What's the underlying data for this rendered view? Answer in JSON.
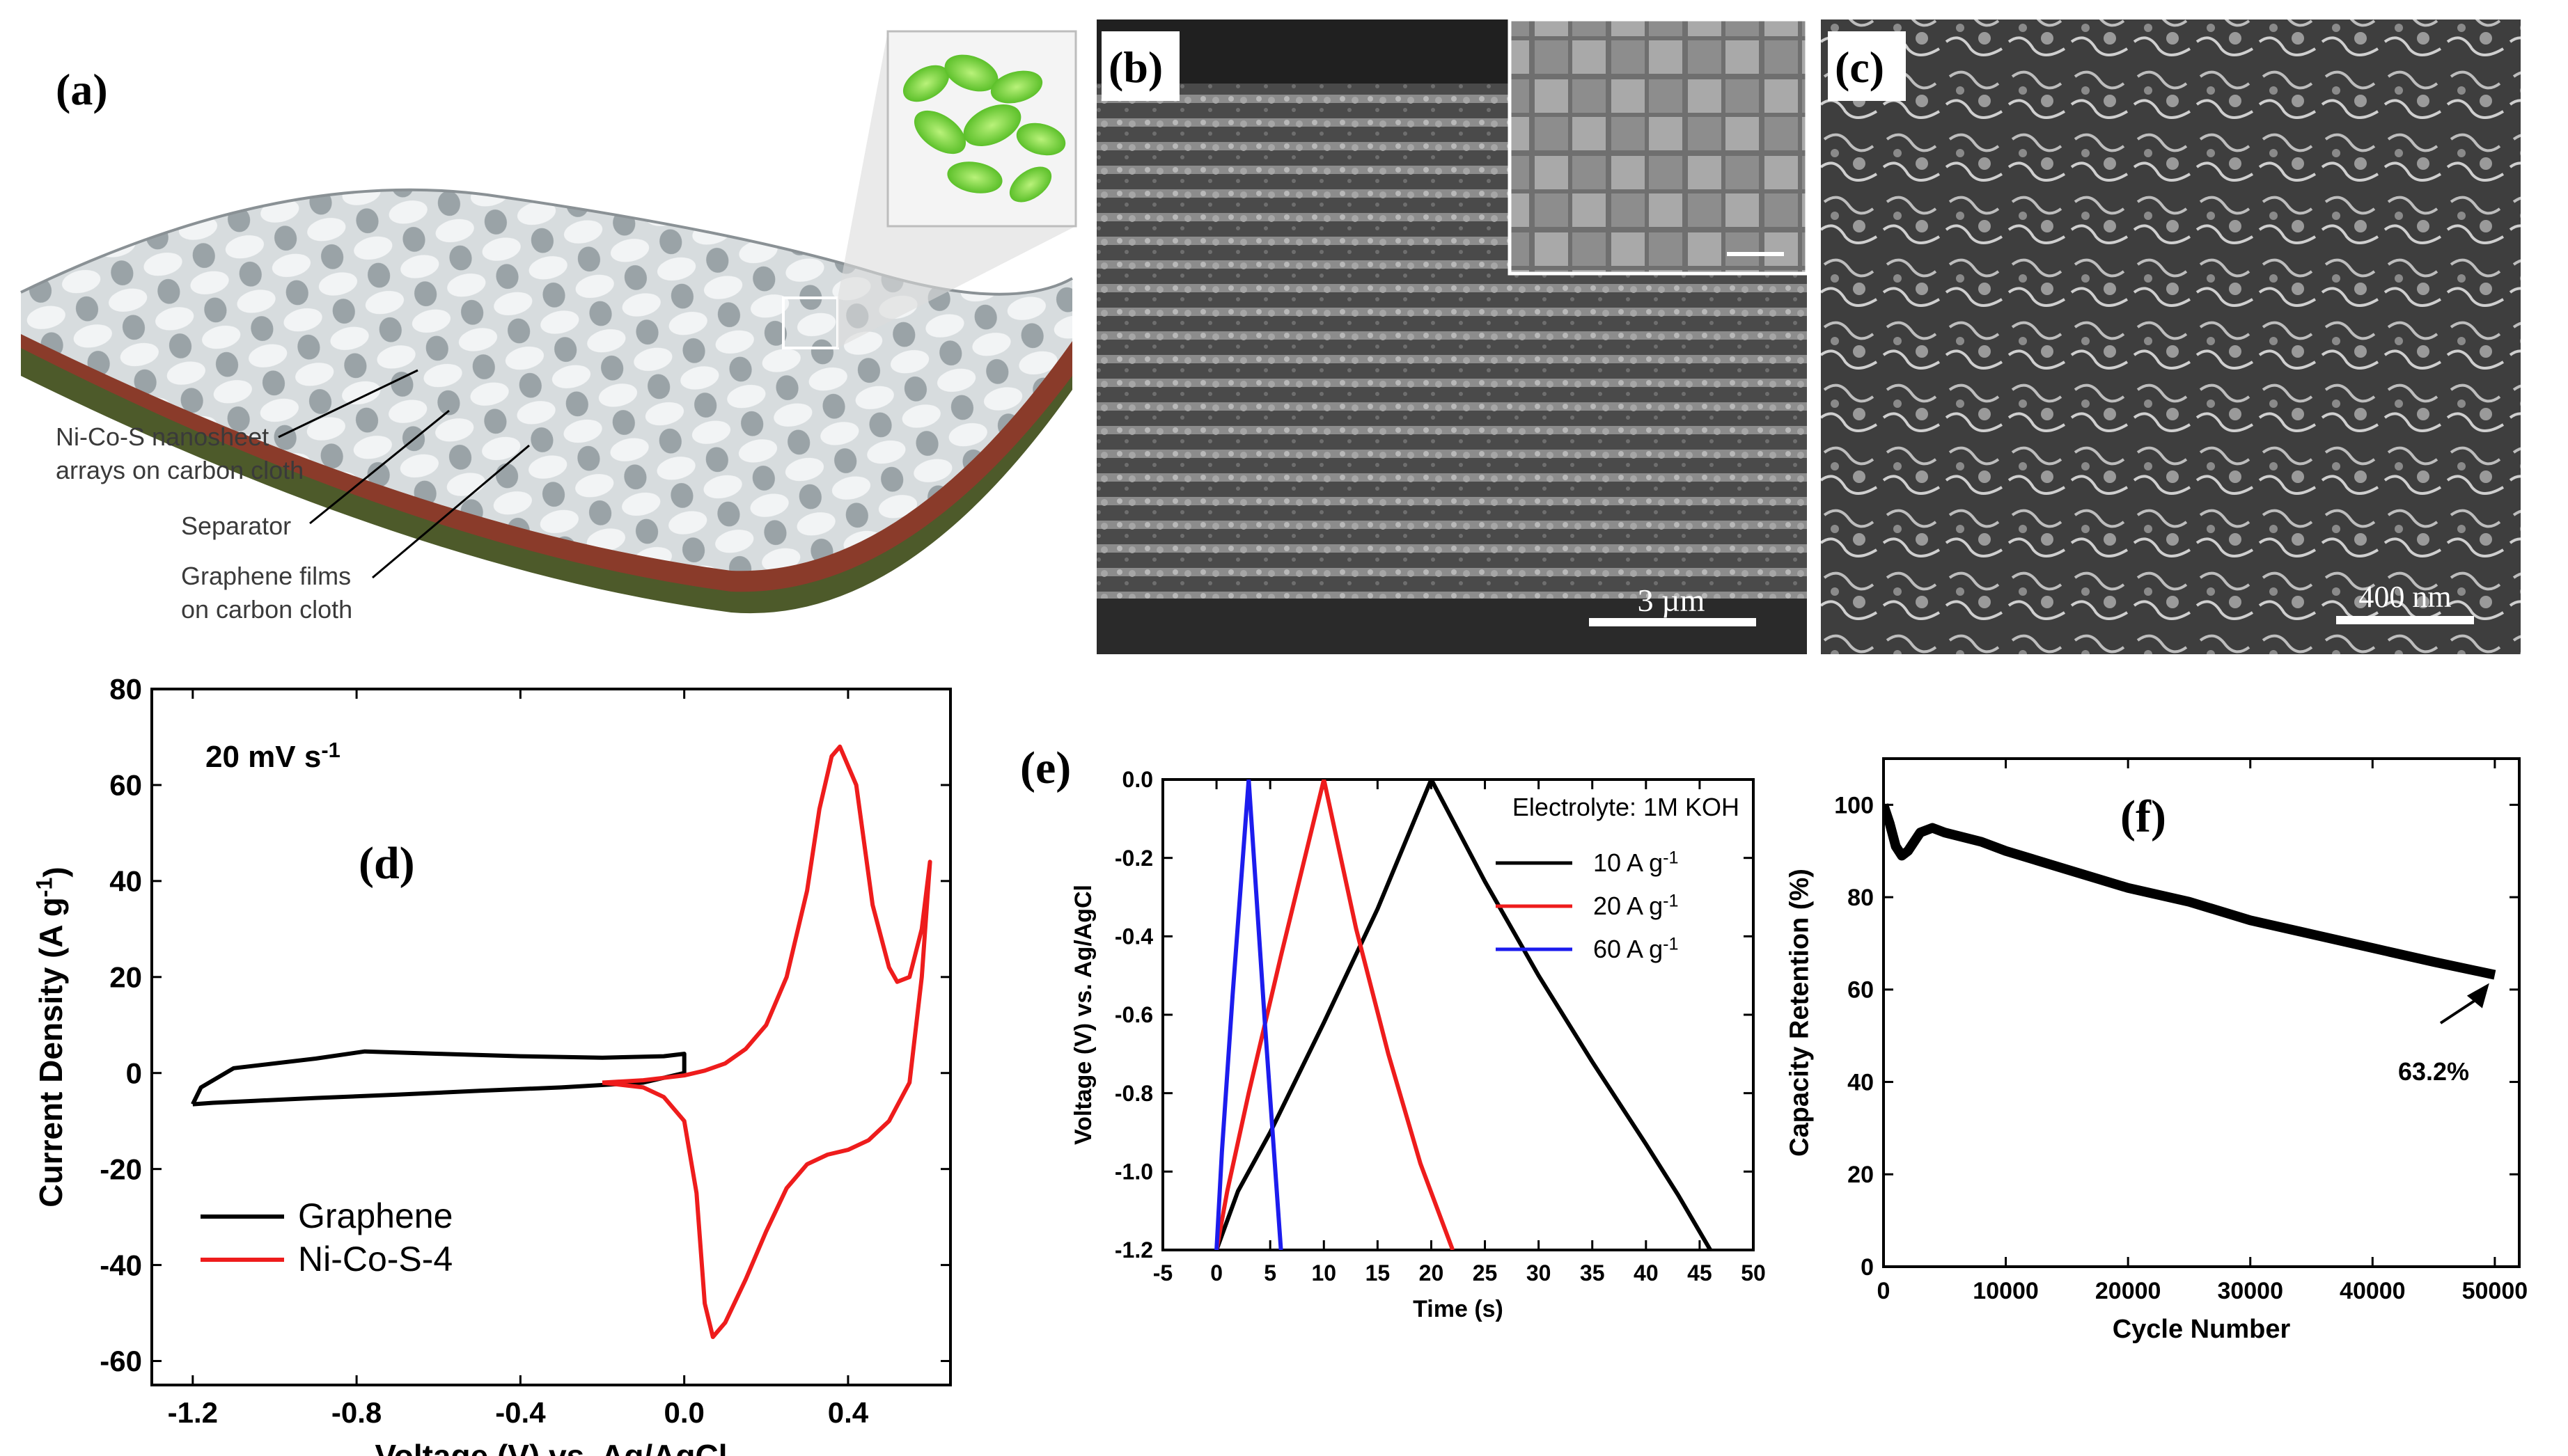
{
  "panels": {
    "a": {
      "letter": "(a)",
      "labels": {
        "nanosheet_line1": "Ni-Co-S nanosheet",
        "nanosheet_line2": "arrays on carbon cloth",
        "separator": "Separator",
        "graphene_line1": "Graphene films",
        "graphene_line2": "on carbon cloth"
      },
      "colors": {
        "cloth": "#c9cfd2",
        "separator": "#8a3b2a",
        "graphene": "#4d5a2a",
        "nanosheet": "#7fdc3a"
      }
    },
    "b": {
      "letter": "(b)",
      "scale_bar": "3 µm"
    },
    "c": {
      "letter": "(c)",
      "scale_bar": "400 nm"
    }
  },
  "chart_data": [
    {
      "panel": "d",
      "letter": "(d)",
      "type": "line",
      "annotation": "20 mV s",
      "annotation_sup": "-1",
      "xlabel": "Voltage (V) vs. Ag/AgCl",
      "ylabel": "Current Density (A g",
      "ylabel_sup": "-1",
      "ylabel_tail": ")",
      "xlim": [
        -1.3,
        0.65
      ],
      "ylim": [
        -65,
        80
      ],
      "x_ticks": [
        -1.2,
        -0.8,
        -0.4,
        0.0,
        0.4
      ],
      "x_tick_labels": [
        "-1.2",
        "-0.8",
        "-0.4",
        "0.0",
        "0.4"
      ],
      "y_ticks": [
        -60,
        -40,
        -20,
        0,
        20,
        40,
        60,
        80
      ],
      "y_tick_labels": [
        "-60",
        "-40",
        "-20",
        "0",
        "20",
        "40",
        "60",
        "80"
      ],
      "legend_position": "bottom-left",
      "series": [
        {
          "name": "Graphene",
          "color": "#000000",
          "x": [
            -1.2,
            -1.18,
            -1.1,
            -0.9,
            -0.78,
            -0.6,
            -0.4,
            -0.2,
            -0.05,
            0.0,
            0.0,
            -0.1,
            -0.3,
            -0.5,
            -0.7,
            -0.9,
            -1.05,
            -1.15,
            -1.2,
            -1.2
          ],
          "y": [
            -6.5,
            -3,
            1,
            3,
            4.5,
            4,
            3.5,
            3.2,
            3.5,
            4,
            0,
            -2,
            -3,
            -3.7,
            -4.5,
            -5.2,
            -5.8,
            -6.2,
            -6.5,
            -6.5
          ]
        },
        {
          "name": "Ni-Co-S-4",
          "color": "#ee1c1c",
          "x": [
            -0.2,
            -0.1,
            0.0,
            0.05,
            0.1,
            0.15,
            0.2,
            0.25,
            0.3,
            0.33,
            0.36,
            0.38,
            0.42,
            0.46,
            0.5,
            0.52,
            0.55,
            0.58,
            0.6,
            0.58,
            0.55,
            0.5,
            0.45,
            0.4,
            0.35,
            0.3,
            0.25,
            0.2,
            0.15,
            0.1,
            0.07,
            0.05,
            0.03,
            0.0,
            -0.05,
            -0.1,
            -0.2
          ],
          "y": [
            -2,
            -1.5,
            -0.5,
            0.5,
            2,
            5,
            10,
            20,
            38,
            55,
            66,
            68,
            60,
            35,
            22,
            19,
            20,
            30,
            44,
            20,
            -2,
            -10,
            -14,
            -16,
            -17,
            -19,
            -24,
            -33,
            -43,
            -52,
            -55,
            -48,
            -25,
            -10,
            -5,
            -3,
            -2
          ]
        }
      ]
    },
    {
      "panel": "e",
      "letter": "(e)",
      "type": "line",
      "annotation": "Electrolyte: 1M KOH",
      "xlabel": "Time (s)",
      "ylabel": "Voltage (V) vs. Ag/AgCl",
      "xlim": [
        -5,
        50
      ],
      "ylim": [
        -1.2,
        0.0
      ],
      "x_ticks": [
        -5,
        0,
        5,
        10,
        15,
        20,
        25,
        30,
        35,
        40,
        45,
        50
      ],
      "x_tick_labels": [
        "-5",
        "0",
        "5",
        "10",
        "15",
        "20",
        "25",
        "30",
        "35",
        "40",
        "45",
        "50"
      ],
      "y_ticks": [
        0.0,
        -0.2,
        -0.4,
        -0.6,
        -0.8,
        -1.0,
        -1.2
      ],
      "y_tick_labels": [
        "0.0",
        "-0.2",
        "-0.4",
        "-0.6",
        "-0.8",
        "-1.0",
        "-1.2"
      ],
      "legend_position": "top-right",
      "series": [
        {
          "name": "10 A g",
          "name_sup": "-1",
          "color": "#000000",
          "x": [
            0,
            2,
            5,
            10,
            15,
            20,
            25,
            30,
            35,
            40,
            43,
            46
          ],
          "y": [
            -1.2,
            -1.05,
            -0.9,
            -0.62,
            -0.33,
            0.0,
            -0.26,
            -0.5,
            -0.72,
            -0.93,
            -1.06,
            -1.2
          ]
        },
        {
          "name": "20 A g",
          "name_sup": "-1",
          "color": "#ee1c1c",
          "x": [
            0,
            1,
            3,
            6,
            10,
            13,
            16,
            19,
            22
          ],
          "y": [
            -1.2,
            -1.05,
            -0.8,
            -0.45,
            0.0,
            -0.38,
            -0.7,
            -0.98,
            -1.2
          ]
        },
        {
          "name": "60 A g",
          "name_sup": "-1",
          "color": "#1c1cee",
          "x": [
            0,
            0.5,
            1.5,
            3,
            4.5,
            6
          ],
          "y": [
            -1.2,
            -0.95,
            -0.55,
            0.0,
            -0.62,
            -1.2
          ]
        }
      ]
    },
    {
      "panel": "f",
      "letter": "(f)",
      "type": "line",
      "annotation": "63.2%",
      "xlabel": "Cycle Number",
      "ylabel": "Capacity Retention (%)",
      "xlim": [
        0,
        52000
      ],
      "ylim": [
        0,
        110
      ],
      "x_ticks": [
        0,
        10000,
        20000,
        30000,
        40000,
        50000
      ],
      "x_tick_labels": [
        "0",
        "10000",
        "20000",
        "30000",
        "40000",
        "50000"
      ],
      "y_ticks": [
        0,
        20,
        40,
        60,
        80,
        100
      ],
      "y_tick_labels": [
        "0",
        "20",
        "40",
        "60",
        "80",
        "100"
      ],
      "series": [
        {
          "color": "#000000",
          "x": [
            0,
            500,
            1000,
            1500,
            2000,
            3000,
            4000,
            5000,
            8000,
            10000,
            15000,
            20000,
            25000,
            30000,
            35000,
            40000,
            45000,
            50000
          ],
          "y": [
            100,
            96,
            91,
            89,
            90,
            94,
            95,
            94,
            92,
            90,
            86,
            82,
            79,
            75,
            72,
            69,
            66,
            63.2
          ]
        }
      ]
    }
  ]
}
